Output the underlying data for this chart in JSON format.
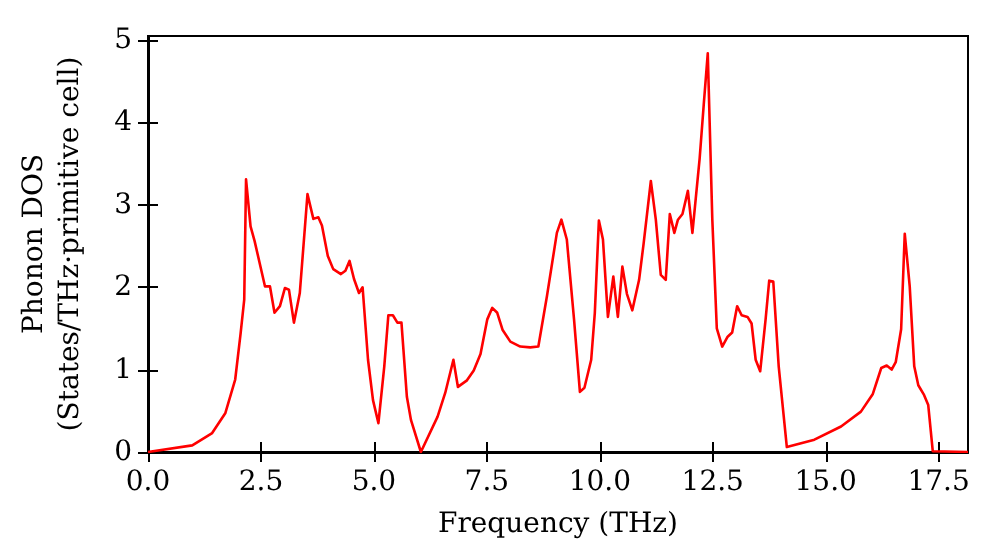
{
  "chart_data": {
    "type": "line",
    "xlabel": "Frequency (THz)",
    "ylabel": "Phonon DOS\n(States/THz·primitive cell)",
    "xlim": [
      0,
      18.15
    ],
    "ylim": [
      0,
      5.05
    ],
    "xticks": [
      {
        "value": 0,
        "label": "0.0"
      },
      {
        "value": 2.5,
        "label": "2.5"
      },
      {
        "value": 5,
        "label": "5.0"
      },
      {
        "value": 7.5,
        "label": "7.5"
      },
      {
        "value": 10,
        "label": "10.0"
      },
      {
        "value": 12.5,
        "label": "12.5"
      },
      {
        "value": 15,
        "label": "15.0"
      },
      {
        "value": 17.5,
        "label": "17.5"
      }
    ],
    "yticks": [
      0,
      1,
      2,
      3,
      4,
      5
    ],
    "grid": false,
    "marker": "none",
    "line_style": "solid",
    "series": [
      {
        "color": "#ff0000",
        "x": [
          0,
          0.98,
          1.42,
          1.71,
          1.93,
          2.05,
          2.13,
          2.17,
          2.27,
          2.36,
          2.59,
          2.7,
          2.8,
          2.92,
          3.03,
          3.12,
          3.23,
          3.36,
          3.53,
          3.66,
          3.77,
          3.85,
          3.98,
          4.1,
          4.27,
          4.37,
          4.46,
          4.56,
          4.67,
          4.75,
          4.87,
          4.98,
          5.1,
          5.23,
          5.32,
          5.42,
          5.52,
          5.61,
          5.73,
          5.82,
          6.04,
          6.41,
          6.58,
          6.76,
          6.86,
          7.06,
          7.21,
          7.36,
          7.51,
          7.62,
          7.73,
          7.85,
          8.02,
          8.24,
          8.46,
          8.64,
          8.83,
          9.05,
          9.15,
          9.27,
          9.43,
          9.56,
          9.66,
          9.81,
          9.89,
          9.98,
          10.07,
          10.18,
          10.3,
          10.4,
          10.5,
          10.6,
          10.72,
          10.87,
          10.97,
          11.13,
          11.24,
          11.35,
          11.46,
          11.55,
          11.65,
          11.73,
          11.83,
          11.95,
          12.05,
          12.21,
          12.3,
          12.39,
          12.49,
          12.59,
          12.71,
          12.83,
          12.93,
          13.04,
          13.14,
          13.27,
          13.36,
          13.45,
          13.55,
          13.67,
          13.75,
          13.84,
          13.96,
          14.14,
          14.75,
          15.34,
          15.78,
          16.04,
          16.23,
          16.35,
          16.46,
          16.55,
          16.67,
          16.75,
          16.86,
          16.96,
          17.05,
          17.17,
          17.27,
          17.37,
          18.15
        ],
        "values": [
          0,
          0.08,
          0.23,
          0.47,
          0.88,
          1.44,
          1.85,
          3.31,
          2.74,
          2.56,
          2.01,
          2.01,
          1.69,
          1.77,
          1.99,
          1.97,
          1.57,
          1.93,
          3.13,
          2.83,
          2.85,
          2.75,
          2.38,
          2.22,
          2.16,
          2.2,
          2.32,
          2.1,
          1.93,
          2.0,
          1.12,
          0.63,
          0.35,
          1.04,
          1.66,
          1.66,
          1.57,
          1.57,
          0.67,
          0.39,
          0,
          0.43,
          0.72,
          1.12,
          0.79,
          0.87,
          0.99,
          1.19,
          1.61,
          1.75,
          1.69,
          1.48,
          1.34,
          1.28,
          1.27,
          1.28,
          1.89,
          2.66,
          2.82,
          2.58,
          1.61,
          0.73,
          0.78,
          1.12,
          1.69,
          2.81,
          2.58,
          1.64,
          2.13,
          1.64,
          2.25,
          1.92,
          1.72,
          2.09,
          2.53,
          3.29,
          2.82,
          2.15,
          2.09,
          2.89,
          2.66,
          2.82,
          2.89,
          3.17,
          2.66,
          3.56,
          4.21,
          4.84,
          2.83,
          1.5,
          1.28,
          1.4,
          1.45,
          1.77,
          1.66,
          1.64,
          1.56,
          1.12,
          0.98,
          1.61,
          2.08,
          2.07,
          1.04,
          0.06,
          0.15,
          0.31,
          0.49,
          0.7,
          1.02,
          1.05,
          1.0,
          1.09,
          1.49,
          2.65,
          2.01,
          1.04,
          0.81,
          0.7,
          0.57,
          0.01,
          0
        ]
      }
    ]
  }
}
